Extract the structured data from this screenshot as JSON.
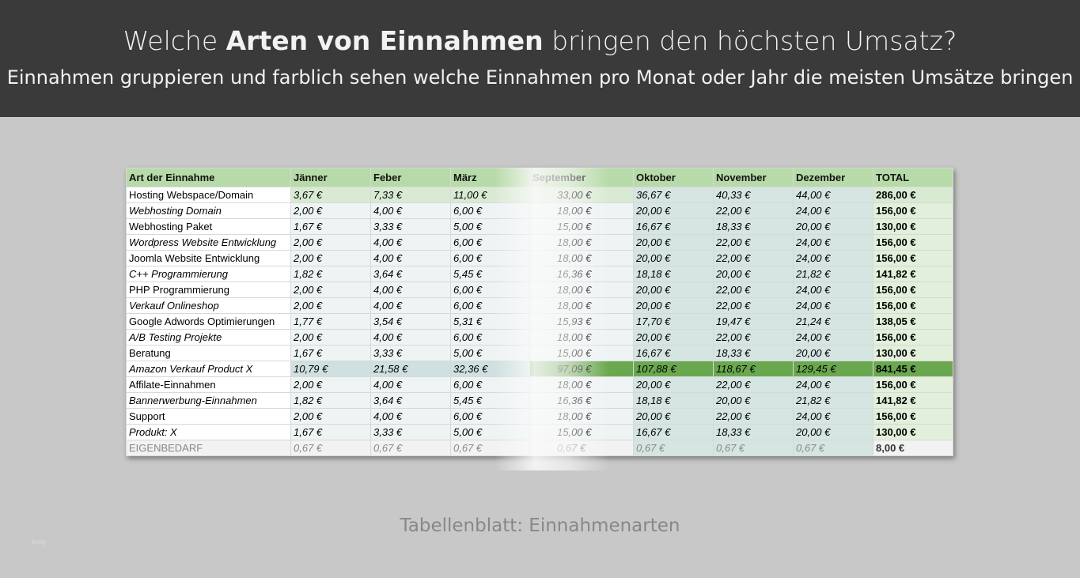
{
  "header": {
    "title_parts": [
      "Welche",
      "Arten von Einnahmen",
      "bringen den höchsten Umsatz?"
    ],
    "subtitle": "Einnahmen gruppieren und farblich sehen welche Einnahmen pro Monat oder Jahr die meisten Umsätze bringen"
  },
  "table": {
    "header": [
      "Art der Einnahme",
      "Jänner",
      "Feber",
      "März",
      "September",
      "Oktober",
      "November",
      "Dezember",
      "TOTAL"
    ],
    "rows": [
      [
        "Hosting Webspace/Domain",
        "3,67 €",
        "7,33 €",
        "11,00 €",
        "33,00 €",
        "36,67 €",
        "40,33 €",
        "44,00 €",
        "286,00 €"
      ],
      [
        "Webhosting Domain",
        "2,00 €",
        "4,00 €",
        "6,00 €",
        "18,00 €",
        "20,00 €",
        "22,00 €",
        "24,00 €",
        "156,00 €"
      ],
      [
        "Webhosting Paket",
        "1,67 €",
        "3,33 €",
        "5,00 €",
        "15,00 €",
        "16,67 €",
        "18,33 €",
        "20,00 €",
        "130,00 €"
      ],
      [
        "Wordpress Website Entwicklung",
        "2,00 €",
        "4,00 €",
        "6,00 €",
        "18,00 €",
        "20,00 €",
        "22,00 €",
        "24,00 €",
        "156,00 €"
      ],
      [
        "Joomla Website Entwicklung",
        "2,00 €",
        "4,00 €",
        "6,00 €",
        "18,00 €",
        "20,00 €",
        "22,00 €",
        "24,00 €",
        "156,00 €"
      ],
      [
        "C++ Programmierung",
        "1,82 €",
        "3,64 €",
        "5,45 €",
        "16,36 €",
        "18,18 €",
        "20,00 €",
        "21,82 €",
        "141,82 €"
      ],
      [
        "PHP Programmierung",
        "2,00 €",
        "4,00 €",
        "6,00 €",
        "18,00 €",
        "20,00 €",
        "22,00 €",
        "24,00 €",
        "156,00 €"
      ],
      [
        "Verkauf Onlineshop",
        "2,00 €",
        "4,00 €",
        "6,00 €",
        "18,00 €",
        "20,00 €",
        "22,00 €",
        "24,00 €",
        "156,00 €"
      ],
      [
        "Google Adwords Optimierungen",
        "1,77 €",
        "3,54 €",
        "5,31 €",
        "15,93 €",
        "17,70 €",
        "19,47 €",
        "21,24 €",
        "138,05 €"
      ],
      [
        "A/B Testing Projekte",
        "2,00 €",
        "4,00 €",
        "6,00 €",
        "18,00 €",
        "20,00 €",
        "22,00 €",
        "24,00 €",
        "156,00 €"
      ],
      [
        "Beratung",
        "1,67 €",
        "3,33 €",
        "5,00 €",
        "15,00 €",
        "16,67 €",
        "18,33 €",
        "20,00 €",
        "130,00 €"
      ],
      [
        "Amazon Verkauf Product X",
        "10,79 €",
        "21,58 €",
        "32,36 €",
        "97,09 €",
        "107,88 €",
        "118,67 €",
        "129,45 €",
        "841,45 €"
      ],
      [
        "Affilate-Einnahmen",
        "2,00 €",
        "4,00 €",
        "6,00 €",
        "18,00 €",
        "20,00 €",
        "22,00 €",
        "24,00 €",
        "156,00 €"
      ],
      [
        "Bannerwerbung-Einnahmen",
        "1,82 €",
        "3,64 €",
        "5,45 €",
        "16,36 €",
        "18,18 €",
        "20,00 €",
        "21,82 €",
        "141,82 €"
      ],
      [
        "Support",
        "2,00 €",
        "4,00 €",
        "6,00 €",
        "18,00 €",
        "20,00 €",
        "22,00 €",
        "24,00 €",
        "156,00 €"
      ],
      [
        "Produkt: X",
        "1,67 €",
        "3,33 €",
        "5,00 €",
        "15,00 €",
        "16,67 €",
        "18,33 €",
        "20,00 €",
        "130,00 €"
      ],
      [
        "EIGENBEDARF",
        "0,67 €",
        "0,67 €",
        "0,67 €",
        "0,67 €",
        "0,67 €",
        "0,67 €",
        "0,67 €",
        "8,00 €"
      ]
    ]
  },
  "caption": "Tabellenblatt: Einnahmenarten",
  "watermark": "blog"
}
